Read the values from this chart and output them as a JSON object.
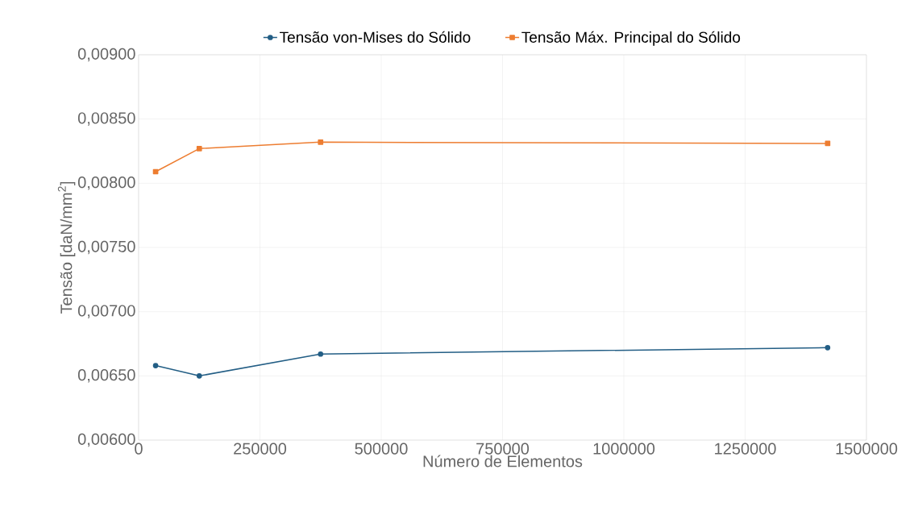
{
  "chart_data": {
    "type": "line",
    "xlabel": "Número de Elementos",
    "ylabel": "Tensão [daN/mm$^{2}$]",
    "x": [
      35000,
      125000,
      375000,
      1420000
    ],
    "series": [
      {
        "name": "Tensão von-Mises do Sólido",
        "color": "#235e85",
        "marker": "circle",
        "values": [
          0.00658,
          0.0065,
          0.00667,
          0.00672
        ]
      },
      {
        "name": "Tensão Máx. Principal do Sólido",
        "color": "#ed7d31",
        "marker": "square",
        "values": [
          0.00809,
          0.00827,
          0.00832,
          0.00831
        ]
      }
    ],
    "xlim": [
      0,
      1500000
    ],
    "xticks": [
      0,
      250000,
      500000,
      750000,
      1000000,
      1250000,
      1500000
    ],
    "ylim": [
      0.006,
      0.009
    ],
    "yticks": [
      {
        "value": 0.006,
        "label": "0,00600"
      },
      {
        "value": 0.0065,
        "label": "0,00650"
      },
      {
        "value": 0.007,
        "label": "0,00700"
      },
      {
        "value": 0.0075,
        "label": "0,00750"
      },
      {
        "value": 0.008,
        "label": "0,00800"
      },
      {
        "value": 0.0085,
        "label": "0,00850"
      },
      {
        "value": 0.009,
        "label": "0,00900"
      }
    ],
    "grid": true,
    "legend": "top",
    "line_style": "solid"
  }
}
